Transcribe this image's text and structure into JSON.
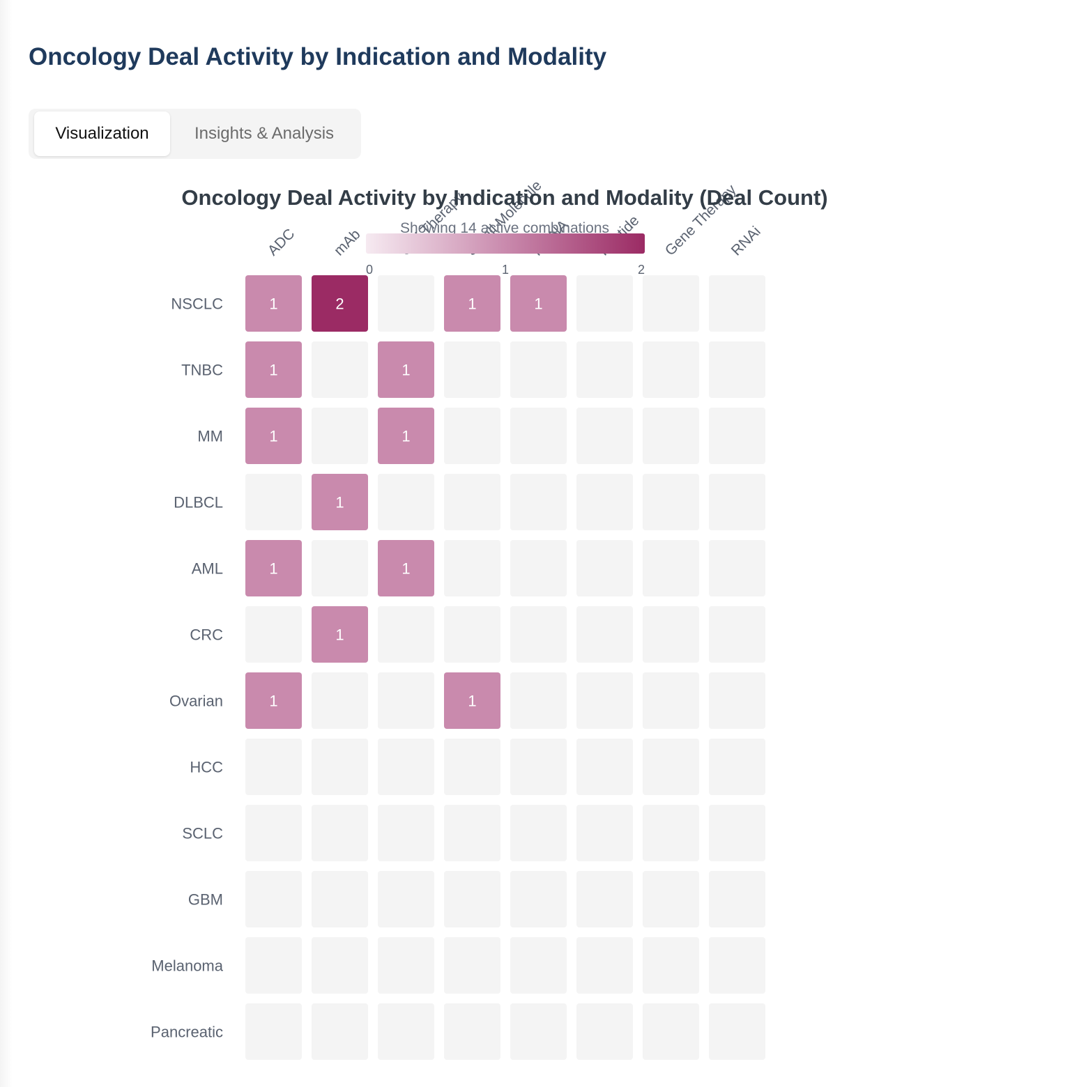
{
  "page": {
    "title": "Oncology Deal Activity by Indication and Modality"
  },
  "tabs": [
    {
      "label": "Visualization",
      "active": true
    },
    {
      "label": "Insights & Analysis",
      "active": false
    }
  ],
  "colors": {
    "title": "#1f3a5c",
    "empty_cell": "#f4f4f4",
    "scale_low": "#f6eaf1",
    "scale_mid": "#c98aad",
    "scale_high": "#9b2b64",
    "axis_text": "#5a6270",
    "chart_title": "#333d47"
  },
  "chart_data": {
    "type": "heatmap",
    "title": "Oncology Deal Activity by Indication and Modality (Deal Count)",
    "subtitle": "Showing 14 active combinations",
    "columns": [
      "ADC",
      "mAb",
      "Cell Therapy",
      "Small Molecule",
      "mRNA",
      "Peptide",
      "Gene Therapy",
      "RNAi"
    ],
    "rows": [
      "NSCLC",
      "TNBC",
      "MM",
      "DLBCL",
      "AML",
      "CRC",
      "Ovarian",
      "HCC",
      "SCLC",
      "GBM",
      "Melanoma",
      "Pancreatic"
    ],
    "values": [
      [
        1,
        2,
        0,
        1,
        1,
        0,
        0,
        0
      ],
      [
        1,
        0,
        1,
        0,
        0,
        0,
        0,
        0
      ],
      [
        1,
        0,
        1,
        0,
        0,
        0,
        0,
        0
      ],
      [
        0,
        1,
        0,
        0,
        0,
        0,
        0,
        0
      ],
      [
        1,
        0,
        1,
        0,
        0,
        0,
        0,
        0
      ],
      [
        0,
        1,
        0,
        0,
        0,
        0,
        0,
        0
      ],
      [
        1,
        0,
        0,
        1,
        0,
        0,
        0,
        0
      ],
      [
        0,
        0,
        0,
        0,
        0,
        0,
        0,
        0
      ],
      [
        0,
        0,
        0,
        0,
        0,
        0,
        0,
        0
      ],
      [
        0,
        0,
        0,
        0,
        0,
        0,
        0,
        0
      ],
      [
        0,
        0,
        0,
        0,
        0,
        0,
        0,
        0
      ],
      [
        0,
        0,
        0,
        0,
        0,
        0,
        0,
        0
      ]
    ],
    "color_scale": {
      "min": 0,
      "max": 2,
      "ticks": [
        0,
        1,
        2
      ]
    },
    "legend_placement": "top-center"
  }
}
